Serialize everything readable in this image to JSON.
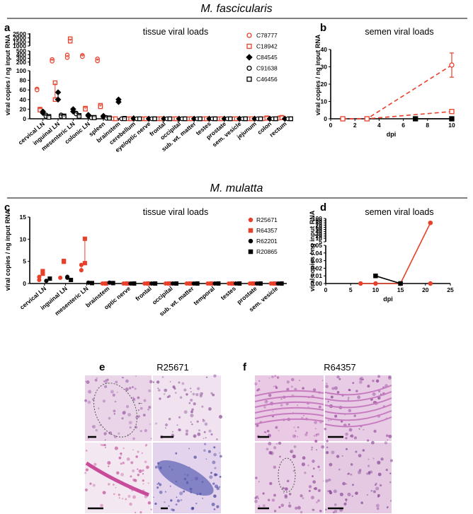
{
  "titles": {
    "top": "M. fascicularis",
    "bottom": "M. mulatta"
  },
  "panel_labels": {
    "a": "a",
    "b": "b",
    "c": "c",
    "d": "d",
    "e": "e",
    "f": "f"
  },
  "histology": {
    "e": {
      "animal": "R25671"
    },
    "f": {
      "animal": "R64357"
    }
  },
  "chart_data": [
    {
      "panel": "a",
      "type": "scatter",
      "title": "tissue viral loads",
      "ylabel": "viral copies / ng input RNA",
      "xlabel": "",
      "y_axis_segments": [
        {
          "ylim": [
            0,
            100
          ],
          "ticks": [
            "0",
            "20",
            "40",
            "60",
            "80",
            "100"
          ]
        },
        {
          "ylim": [
            100,
            500
          ],
          "ticks": [
            "100",
            "200",
            "300",
            "400",
            "500"
          ]
        },
        {
          "ylim": [
            500,
            2500
          ],
          "ticks": [
            "1000",
            "1500",
            "2000",
            "2500"
          ]
        }
      ],
      "categories": [
        "cervical LN",
        "inguinal LN",
        "mesenteric LN",
        "colonic LN",
        "spleen",
        "brainstem",
        "cerebellum",
        "eye/optic nerve",
        "frontal",
        "occipital",
        "sub. wt. matter",
        "testes",
        "prostate",
        "sem. vesicle",
        "jejunum",
        "colon",
        "rectum"
      ],
      "series": [
        {
          "name": "C78777",
          "color": "#e8402a",
          "marker": "circle-open",
          "values": [
            [
              62,
              60
            ],
            [
              270,
              225
            ],
            [
              390,
              320
            ],
            [
              380,
              345
            ],
            [
              285,
              230
            ],
            [
              0,
              0
            ],
            [
              0,
              0
            ],
            [
              0,
              0
            ],
            [
              0,
              0
            ],
            [
              0,
              0
            ],
            [
              0,
              0
            ],
            [
              0,
              0
            ],
            [
              0,
              0
            ],
            [
              0,
              0
            ],
            [
              0,
              0
            ],
            [
              0,
              0
            ],
            [
              2,
              1
            ]
          ]
        },
        {
          "name": "C18942",
          "color": "#e8402a",
          "marker": "square-open",
          "values": [
            [
              20,
              18
            ],
            [
              75,
              40
            ],
            [
              1900,
              1600
            ],
            [
              22,
              20
            ],
            [
              28,
              25
            ],
            [
              0,
              0
            ],
            [
              0,
              0
            ],
            [
              0,
              0
            ],
            [
              0,
              0
            ],
            [
              0,
              0
            ],
            [
              0,
              0
            ],
            [
              0,
              0
            ],
            [
              0,
              0
            ],
            [
              0,
              0
            ],
            [
              0,
              0
            ],
            [
              2,
              1
            ],
            [
              3,
              2
            ]
          ]
        },
        {
          "name": "C84545",
          "color": "#000000",
          "marker": "diamond",
          "values": [
            [
              15,
              12
            ],
            [
              55,
              40
            ],
            [
              20,
              15
            ],
            [
              8,
              6
            ],
            [
              6,
              4
            ],
            [
              40,
              35
            ],
            [
              1,
              0
            ],
            [
              0,
              0
            ],
            [
              0,
              0
            ],
            [
              0,
              0
            ],
            [
              0,
              0
            ],
            [
              0,
              0
            ],
            [
              0,
              0
            ],
            [
              0,
              0
            ],
            [
              0,
              0
            ],
            [
              0,
              0
            ],
            [
              0,
              0
            ]
          ]
        },
        {
          "name": "C91638",
          "color": "#000000",
          "marker": "circle-open",
          "values": [
            [
              8,
              5
            ],
            [
              8,
              5
            ],
            [
              12,
              10
            ],
            [
              3,
              2
            ],
            [
              3,
              1
            ],
            [
              0,
              0
            ],
            [
              0,
              0
            ],
            [
              0,
              0
            ],
            [
              0,
              0
            ],
            [
              0,
              0
            ],
            [
              0,
              0
            ],
            [
              0,
              0
            ],
            [
              0,
              0
            ],
            [
              0,
              0
            ],
            [
              0,
              0
            ],
            [
              0,
              0
            ],
            [
              0,
              0
            ]
          ]
        },
        {
          "name": "C46456",
          "color": "#000000",
          "marker": "square-open",
          "values": [
            [
              5,
              3
            ],
            [
              6,
              4
            ],
            [
              7,
              5
            ],
            [
              3,
              2
            ],
            [
              2,
              1
            ],
            [
              1,
              0
            ],
            [
              0,
              0
            ],
            [
              0,
              0
            ],
            [
              0,
              0
            ],
            [
              0,
              0
            ],
            [
              0,
              0
            ],
            [
              0,
              0
            ],
            [
              0,
              0
            ],
            [
              0,
              0
            ],
            [
              0,
              0
            ],
            [
              0,
              0
            ],
            [
              0,
              0
            ]
          ]
        }
      ]
    },
    {
      "panel": "b",
      "type": "line",
      "title": "semen viral loads",
      "xlabel": "dpi",
      "ylabel": "viral copies / ng input RNA",
      "xlim": [
        0,
        10
      ],
      "ylim": [
        0,
        40
      ],
      "xticks": [
        "0",
        "2",
        "4",
        "6",
        "8",
        "10"
      ],
      "yticks": [
        "0",
        "10",
        "20",
        "30",
        "40"
      ],
      "series": [
        {
          "name": "C78777",
          "color": "#e8402a",
          "dashed": true,
          "marker": "circle-open",
          "x": [
            1,
            3,
            10
          ],
          "y": [
            0,
            0,
            31
          ],
          "err": [
            0,
            0,
            7
          ]
        },
        {
          "name": "C18942",
          "color": "#e8402a",
          "dashed": true,
          "marker": "square-open",
          "x": [
            1,
            3,
            10
          ],
          "y": [
            0,
            0,
            4.2
          ],
          "err": [
            0,
            0,
            0
          ]
        },
        {
          "name": "black",
          "color": "#000000",
          "dashed": false,
          "marker": "square",
          "x": [
            7,
            10
          ],
          "y": [
            0,
            0
          ],
          "err": [
            0,
            0
          ]
        }
      ]
    },
    {
      "panel": "c",
      "type": "scatter",
      "title": "tissue viral loads",
      "ylabel": "viral copies / ng input RNA",
      "xlabel": "",
      "ylim": [
        0,
        15
      ],
      "yticks": [
        "0",
        "5",
        "10",
        "15"
      ],
      "categories": [
        "cervical LN",
        "inguinal LN",
        "mesenteric LN",
        "brainstem",
        "optic nerve",
        "frontal",
        "occipital",
        "sub. wt. matter",
        "temporal",
        "testes",
        "prostate",
        "sem. vesicle"
      ],
      "series": [
        {
          "name": "R25671",
          "color": "#e8402a",
          "marker": "circle",
          "values": [
            [
              1.5,
              0.8
            ],
            [
              1.3
            ],
            [
              4.2,
              3.0
            ],
            [
              0
            ],
            [
              0
            ],
            [
              0
            ],
            [
              0
            ],
            [
              0
            ],
            [
              0
            ],
            [
              0
            ],
            [
              0
            ],
            [
              0
            ]
          ]
        },
        {
          "name": "R64357",
          "color": "#e8402a",
          "marker": "square",
          "values": [
            [
              2.8,
              2.2
            ],
            [
              5.1,
              4.9
            ],
            [
              10.1,
              4.6
            ],
            [
              0
            ],
            [
              0
            ],
            [
              0
            ],
            [
              0
            ],
            [
              0
            ],
            [
              0
            ],
            [
              0
            ],
            [
              0
            ],
            [
              0
            ]
          ]
        },
        {
          "name": "R62201",
          "color": "#000000",
          "marker": "circle",
          "values": [
            [
              0.6
            ],
            [
              1.5,
              1.3
            ],
            [
              0.2
            ],
            [
              0.2
            ],
            [
              0
            ],
            [
              0
            ],
            [
              0
            ],
            [
              0
            ],
            [
              0
            ],
            [
              0
            ],
            [
              0
            ],
            [
              0
            ]
          ]
        },
        {
          "name": "R20865",
          "color": "#000000",
          "marker": "square",
          "values": [
            [
              1.1
            ],
            [
              0.8
            ],
            [
              0.1
            ],
            [
              0.1
            ],
            [
              0
            ],
            [
              0
            ],
            [
              0
            ],
            [
              0
            ],
            [
              0
            ],
            [
              0
            ],
            [
              0
            ],
            [
              0
            ]
          ]
        }
      ]
    },
    {
      "panel": "d",
      "type": "line",
      "title": "semen viral loads",
      "xlabel": "dpi",
      "ylabel": "viral copies / ng input RNA",
      "xlim": [
        0,
        25
      ],
      "xticks": [
        "0",
        "5",
        "10",
        "15",
        "20",
        "25"
      ],
      "y_axis_segments": [
        {
          "ylim": [
            0,
            0.05
          ],
          "ticks": [
            "0.00",
            "0.01",
            "0.02",
            "0.03",
            "0.04",
            "0.05"
          ]
        },
        {
          "ylim": [
            5,
            100
          ],
          "ticks": [
            "5",
            "10",
            "20",
            "30",
            "40",
            "50",
            "60",
            "70",
            "80",
            "90",
            "100"
          ]
        }
      ],
      "series": [
        {
          "name": "R64357",
          "color": "#e8402a",
          "marker": "circle",
          "x": [
            7,
            10,
            15,
            21
          ],
          "y": [
            0,
            0,
            0,
            80
          ],
          "err": [
            0,
            0,
            0,
            3
          ]
        },
        {
          "name": "R25671",
          "color": "#e8402a",
          "marker": "circle",
          "x": [
            21
          ],
          "y": [
            0
          ],
          "err": [
            0
          ]
        },
        {
          "name": "black",
          "color": "#000000",
          "marker": "square",
          "x": [
            10,
            15
          ],
          "y": [
            0.01,
            0
          ],
          "err": [
            0,
            0
          ]
        }
      ]
    }
  ]
}
